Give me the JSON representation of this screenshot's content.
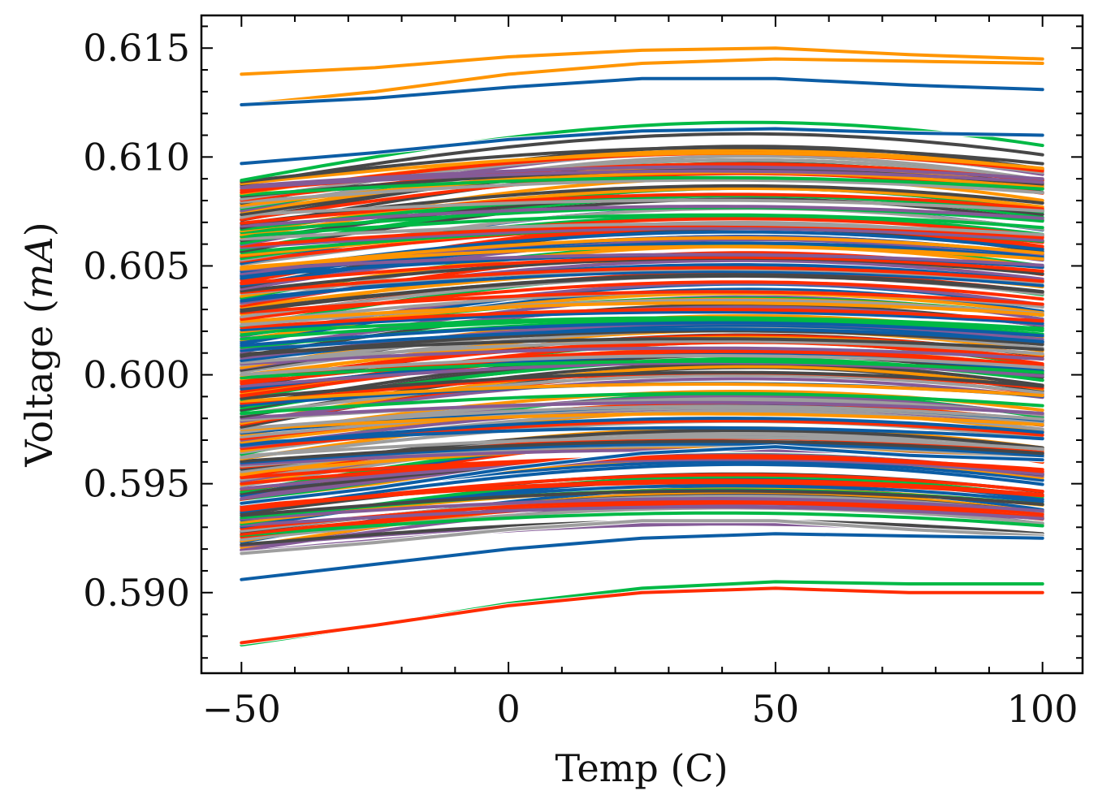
{
  "chart_data": {
    "type": "line",
    "xlabel": "Temp (C)",
    "ylabel": "Voltage (mA)",
    "ylabel_parts": {
      "prefix": "Voltage (",
      "variable": "mA",
      "suffix": ")"
    },
    "xlim": [
      -57.5,
      107.5
    ],
    "ylim": [
      0.5863,
      0.6165
    ],
    "x_ticks": [
      -50,
      0,
      50,
      100
    ],
    "x_tick_labels": [
      "−50",
      "0",
      "50",
      "100"
    ],
    "x_minor_step": 10,
    "y_ticks": [
      0.59,
      0.595,
      0.6,
      0.605,
      0.61,
      0.615
    ],
    "y_tick_labels": [
      "0.590",
      "0.595",
      "0.600",
      "0.605",
      "0.610",
      "0.615"
    ],
    "y_minor_step": 0.001,
    "x_range": [
      -50,
      100
    ],
    "x_sample_points": [
      -50,
      -25,
      0,
      25,
      50,
      75,
      100
    ],
    "grid": false,
    "legend": "none",
    "colors": [
      "#0C5DA5",
      "#00B945",
      "#FF9500",
      "#FF2C00",
      "#845B97",
      "#474747",
      "#9E9E9E"
    ],
    "series_count_estimate": 220,
    "series_highlight": [
      {
        "x": [
          -50,
          -25,
          0,
          25,
          50,
          75,
          100
        ],
        "y": [
          0.6138,
          0.6141,
          0.6146,
          0.6149,
          0.615,
          0.6147,
          0.6145
        ],
        "color": "#FF9500"
      },
      {
        "x": [
          -50,
          -25,
          0,
          25,
          50,
          75,
          100
        ],
        "y": [
          0.6124,
          0.613,
          0.6138,
          0.6143,
          0.6145,
          0.6144,
          0.6143
        ],
        "color": "#FF9500"
      },
      {
        "x": [
          -50,
          -25,
          0,
          25,
          50,
          75,
          100
        ],
        "y": [
          0.6124,
          0.6127,
          0.6132,
          0.6136,
          0.6136,
          0.6133,
          0.6131
        ],
        "color": "#0C5DA5"
      },
      {
        "x": [
          -50,
          -25,
          0,
          25,
          50,
          75,
          100
        ],
        "y": [
          0.6097,
          0.6102,
          0.6108,
          0.6112,
          0.6113,
          0.6111,
          0.611
        ],
        "color": "#0C5DA5"
      },
      {
        "x": [
          -50,
          -25,
          0,
          25,
          50,
          75,
          100
        ],
        "y": [
          0.5941,
          0.5948,
          0.5957,
          0.5964,
          0.5967,
          0.5963,
          0.5961
        ],
        "color": "#0C5DA5"
      },
      {
        "x": [
          -50,
          -25,
          0,
          25,
          50,
          75,
          100
        ],
        "y": [
          0.5918,
          0.5923,
          0.5929,
          0.5933,
          0.5933,
          0.5929,
          0.5926
        ],
        "color": "#9E9E9E"
      },
      {
        "x": [
          -50,
          -25,
          0,
          25,
          50,
          75,
          100
        ],
        "y": [
          0.5906,
          0.5913,
          0.592,
          0.5925,
          0.5927,
          0.5926,
          0.5925
        ],
        "color": "#0C5DA5"
      },
      {
        "x": [
          -50,
          -25,
          0,
          25,
          50,
          75,
          100
        ],
        "y": [
          0.5876,
          0.5885,
          0.5895,
          0.5902,
          0.5905,
          0.5904,
          0.5904
        ],
        "color": "#00B945"
      },
      {
        "x": [
          -50,
          -25,
          0,
          25,
          50,
          75,
          100
        ],
        "y": [
          0.5877,
          0.5885,
          0.5894,
          0.59,
          0.5902,
          0.59,
          0.59
        ],
        "color": "#FF2C00"
      }
    ],
    "band": {
      "y_start_range": [
        0.5918,
        0.609
      ],
      "y_end_range": [
        0.592,
        0.6112
      ]
    }
  }
}
